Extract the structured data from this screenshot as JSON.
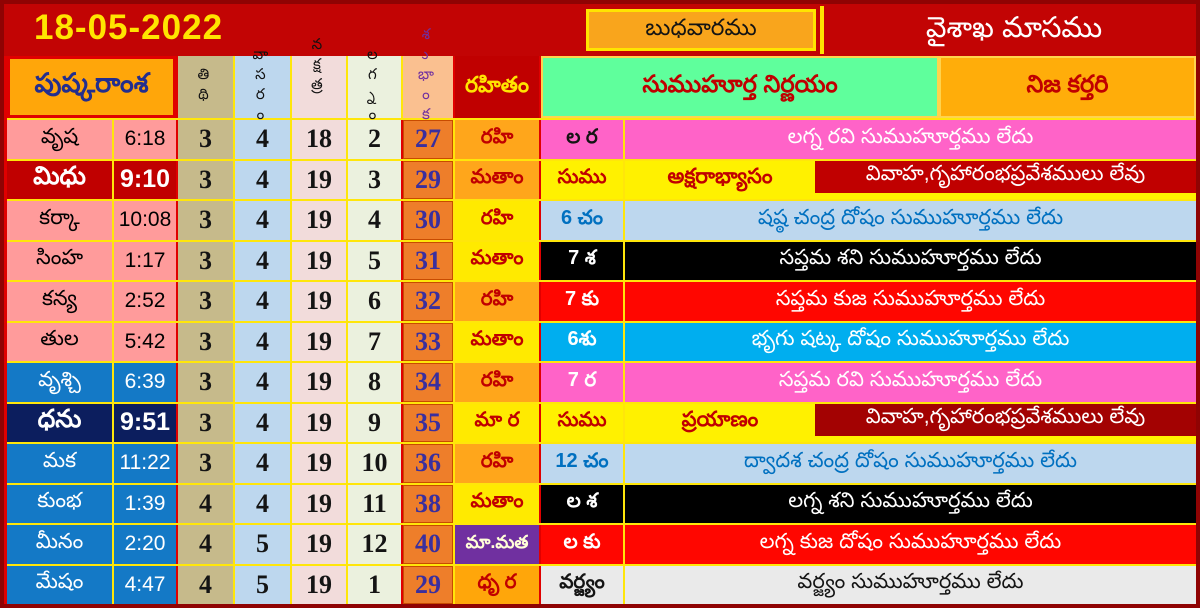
{
  "topbar": {
    "date": "18-05-2022",
    "weekday": "బుధవారము",
    "month": "వైశాఖ మాసము"
  },
  "headers": {
    "left_block": "పుష్కరాంశ",
    "tithi": "తిథి",
    "vara": "వాసరం",
    "nakshatra": "నక్షత్రం",
    "lagna": "లగ్నం",
    "total": "శుభాంకం",
    "rahitham": "రహితం",
    "muhurta_section": "సుముహూర్త నిర్ణయం",
    "nija_kartari": "నిజ కర్తరి"
  },
  "colors": {
    "page_red": "#C20404",
    "grid_yellow": "#FFE60A",
    "date_yellow": "#FFE400",
    "weekday_orange": "#F9A51C",
    "header_orange": "#FFA60A",
    "header_green": "#5FFF9C",
    "total_orange": "#EE7E2A",
    "rahitham_orange": "#FFA61B",
    "rahitham_yellow": "#FFEA00",
    "rahitham_purple": "#7030A0",
    "rasi_pink": "#FF9B9B",
    "rasi_blue": "#1479C6",
    "rasi_navy": "#0C1E5E",
    "rasi_darkred": "#C00000",
    "msg_magenta": "#FF63C8",
    "msg_lightblue": "#BDD7EE",
    "msg_black": "#000000",
    "msg_red": "#FF0600",
    "msg_cyan": "#00AEEF",
    "msg_gray": "#EAEAEA"
  },
  "rows": [
    {
      "rasi": "వృష",
      "time": "6:18",
      "tithi": "3",
      "vara": "4",
      "nakshatra": "18",
      "lagna": "2",
      "total": "27",
      "rahitham": "రహి",
      "label": "ల ర",
      "message": "లగ్న రవి సుముహూర్తము లేదు"
    },
    {
      "rasi": "మిధు",
      "time": "9:10",
      "tithi": "3",
      "vara": "4",
      "nakshatra": "19",
      "lagna": "3",
      "total": "29",
      "rahitham": "మతాం",
      "label": "సుము",
      "activity": "అక్షరాభ్యాసం",
      "message": "వివాహ,గృహారంభప్రవేశములు లేవు"
    },
    {
      "rasi": "కర్కా",
      "time": "10:08",
      "tithi": "3",
      "vara": "4",
      "nakshatra": "19",
      "lagna": "4",
      "total": "30",
      "rahitham": "రహి",
      "label": "6 చం",
      "message": "షష్ఠ చంద్ర దోషం సుముహూర్తము లేదు"
    },
    {
      "rasi": "సింహ",
      "time": "1:17",
      "tithi": "3",
      "vara": "4",
      "nakshatra": "19",
      "lagna": "5",
      "total": "31",
      "rahitham": "మతాం",
      "label": "7 శ",
      "message": "సప్తమ శని సుముహూర్తము లేదు"
    },
    {
      "rasi": "కన్య",
      "time": "2:52",
      "tithi": "3",
      "vara": "4",
      "nakshatra": "19",
      "lagna": "6",
      "total": "32",
      "rahitham": "రహి",
      "label": "7 కు",
      "message": "సప్తమ కుజ సుముహూర్తము లేదు"
    },
    {
      "rasi": "తుల",
      "time": "5:42",
      "tithi": "3",
      "vara": "4",
      "nakshatra": "19",
      "lagna": "7",
      "total": "33",
      "rahitham": "మతాం",
      "label": "6శు",
      "message": "భృగు షట్క దోషం సుముహూర్తము లేదు"
    },
    {
      "rasi": "వృశ్చి",
      "time": "6:39",
      "tithi": "3",
      "vara": "4",
      "nakshatra": "19",
      "lagna": "8",
      "total": "34",
      "rahitham": "రహి",
      "label": "7 ర",
      "message": "సప్తమ  రవి సుముహూర్తము లేదు"
    },
    {
      "rasi": "ధను",
      "time": "9:51",
      "tithi": "3",
      "vara": "4",
      "nakshatra": "19",
      "lagna": "9",
      "total": "35",
      "rahitham": "మా ర",
      "label": "సుము",
      "activity": "ప్రయాణం",
      "message": "వివాహ,గృహారంభప్రవేశములు లేవు"
    },
    {
      "rasi": "మక",
      "time": "11:22",
      "tithi": "3",
      "vara": "4",
      "nakshatra": "19",
      "lagna": "10",
      "total": "36",
      "rahitham": "రహి",
      "label": "12 చం",
      "message": "ద్వాదశ  చంద్ర దోషం సుముహూర్తము లేదు"
    },
    {
      "rasi": "కుంభ",
      "time": "1:39",
      "tithi": "4",
      "vara": "4",
      "nakshatra": "19",
      "lagna": "11",
      "total": "38",
      "rahitham": "మతాం",
      "label": "ల శ",
      "message": "లగ్న శని  సుముహూర్తము లేదు"
    },
    {
      "rasi": "మీనం",
      "time": "2:20",
      "tithi": "4",
      "vara": "5",
      "nakshatra": "19",
      "lagna": "12",
      "total": "40",
      "rahitham": "మా.మత",
      "label": "ల కు",
      "message": "లగ్న  కుజ దోషం సుముహూర్తము లేదు"
    },
    {
      "rasi": "మేషం",
      "time": "4:47",
      "tithi": "4",
      "vara": "5",
      "nakshatra": "19",
      "lagna": "1",
      "total": "29",
      "rahitham": "ధృ ర",
      "label": "వర్జ్యం",
      "message": "వర్జ్యం సుముహూర్తము లేదు"
    }
  ]
}
